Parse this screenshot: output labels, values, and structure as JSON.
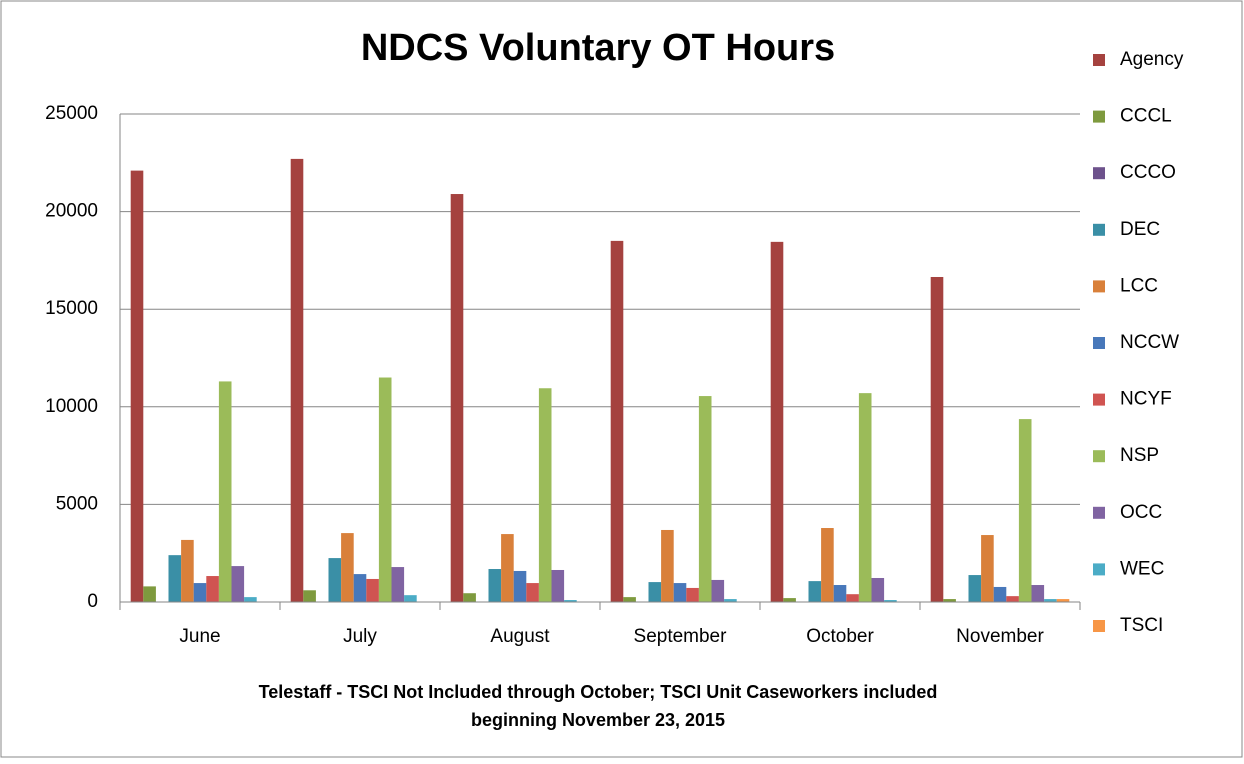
{
  "chart_data": {
    "type": "bar",
    "title": "NDCS Voluntary OT Hours",
    "note_lines": [
      "Telestaff - TSCI Not Included through October; TSCI Unit Caseworkers included",
      "beginning November 23, 2015"
    ],
    "categories": [
      "June",
      "July",
      "August",
      "September",
      "October",
      "November"
    ],
    "series": [
      {
        "name": "Agency",
        "color": "#A5423F",
        "values": [
          22100,
          22700,
          20900,
          18500,
          18450,
          16650
        ]
      },
      {
        "name": "CCCL",
        "color": "#7E9A3E",
        "values": [
          800,
          600,
          450,
          250,
          200,
          150
        ]
      },
      {
        "name": "CCCO",
        "color": "#6D528C",
        "values": [
          0,
          0,
          0,
          0,
          0,
          0
        ]
      },
      {
        "name": "DEC",
        "color": "#3A8FA6",
        "values": [
          2400,
          2250,
          1690,
          1020,
          1070,
          1380
        ]
      },
      {
        "name": "LCC",
        "color": "#D9803A",
        "values": [
          3180,
          3530,
          3480,
          3690,
          3790,
          3430
        ]
      },
      {
        "name": "NCCW",
        "color": "#4878BA",
        "values": [
          970,
          1430,
          1590,
          970,
          870,
          770
        ]
      },
      {
        "name": "NCYF",
        "color": "#D05451",
        "values": [
          1330,
          1180,
          970,
          720,
          400,
          300
        ]
      },
      {
        "name": "NSP",
        "color": "#9BBB59",
        "values": [
          11300,
          11500,
          10950,
          10550,
          10700,
          9370
        ]
      },
      {
        "name": "OCC",
        "color": "#8064A2",
        "values": [
          1840,
          1790,
          1640,
          1130,
          1230,
          870
        ]
      },
      {
        "name": "WEC",
        "color": "#4BACC6",
        "values": [
          250,
          350,
          100,
          150,
          100,
          150
        ]
      },
      {
        "name": "TSCI",
        "color": "#F79646",
        "values": [
          0,
          0,
          0,
          0,
          0,
          150
        ]
      }
    ],
    "ylim": [
      0,
      25000
    ],
    "yticks": [
      0,
      5000,
      10000,
      15000,
      20000,
      25000
    ],
    "grid": true,
    "legend": "right"
  }
}
